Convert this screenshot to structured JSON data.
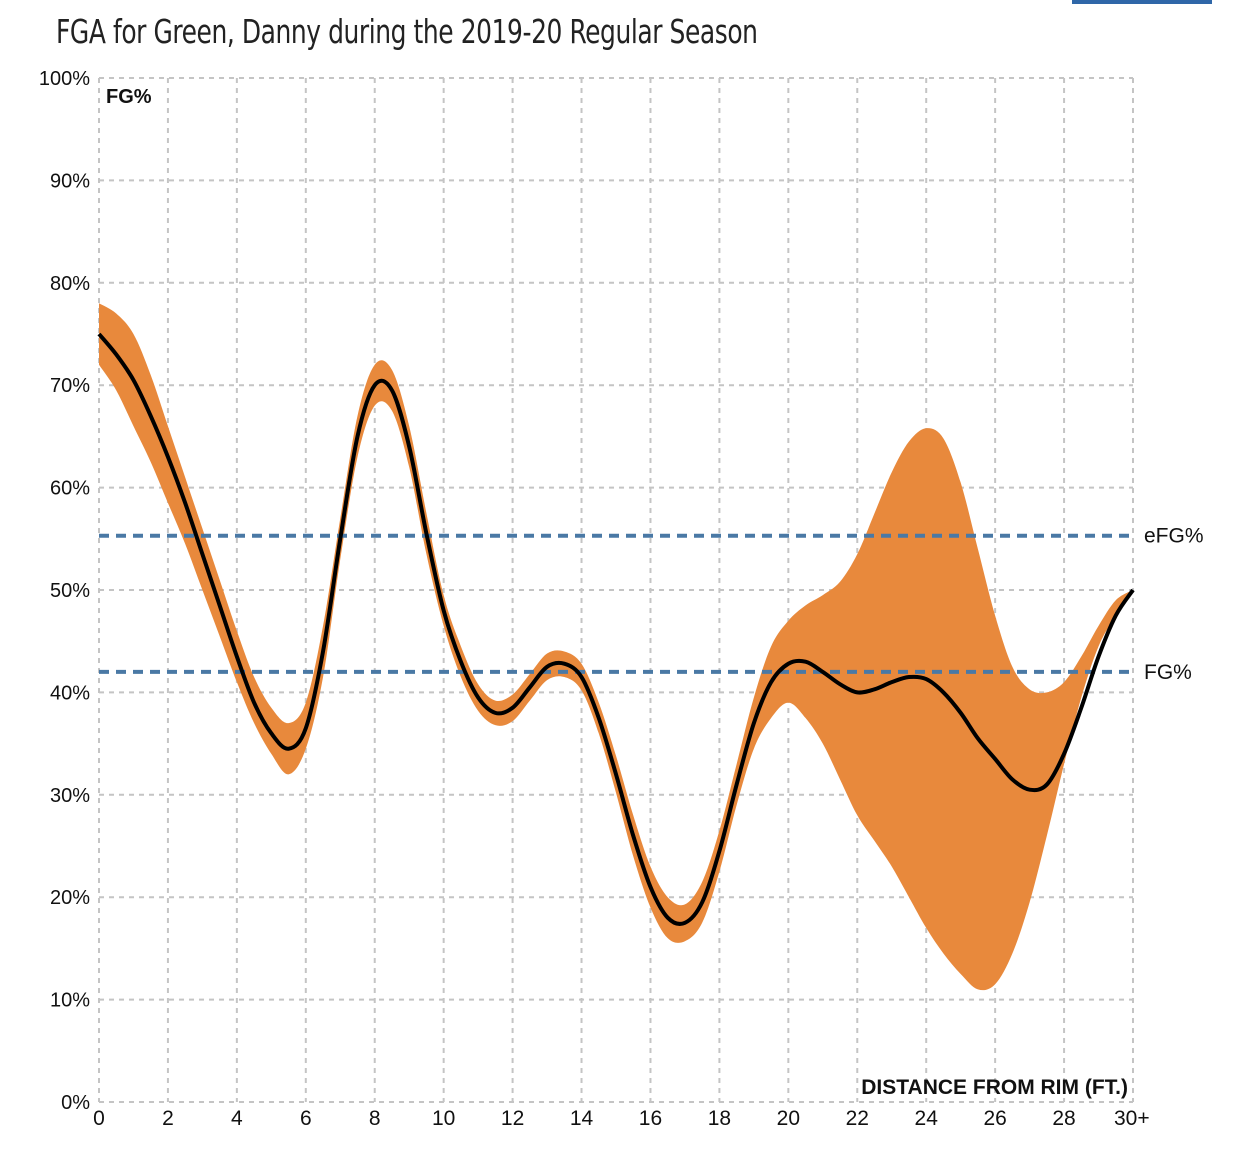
{
  "header": {
    "title": "FGA for Green, Danny during the 2019-20 Regular Season"
  },
  "chart_data": {
    "type": "line",
    "title": "FGA for Green, Danny during the 2019-20 Regular Season",
    "ylabel": "FG%",
    "xlabel": "DISTANCE FROM RIM (FT.)",
    "xlim": [
      0,
      30
    ],
    "ylim": [
      0,
      100
    ],
    "x_ticks": [
      "0",
      "2",
      "4",
      "6",
      "8",
      "10",
      "12",
      "14",
      "16",
      "18",
      "20",
      "22",
      "24",
      "26",
      "28",
      "30+"
    ],
    "y_ticks": [
      "0%",
      "10%",
      "20%",
      "30%",
      "40%",
      "50%",
      "60%",
      "70%",
      "80%",
      "90%",
      "100%"
    ],
    "grid": true,
    "colors": {
      "band": "#e8893c",
      "line": "#000000",
      "reference": "#4a79a5",
      "grid": "#c4c4c4"
    },
    "series": [
      {
        "name": "FG%",
        "x": [
          0,
          0.5,
          1,
          1.5,
          2,
          2.5,
          3,
          3.5,
          4,
          4.5,
          5,
          5.5,
          6,
          6.5,
          7,
          7.5,
          8,
          8.5,
          9,
          9.5,
          10,
          10.5,
          11,
          11.5,
          12,
          12.5,
          13,
          13.5,
          14,
          14.5,
          15,
          15.5,
          16,
          16.5,
          17,
          17.5,
          18,
          18.5,
          19,
          19.5,
          20,
          20.5,
          21,
          21.5,
          22,
          22.5,
          23,
          23.5,
          24,
          24.5,
          25,
          25.5,
          26,
          26.5,
          27,
          27.5,
          28,
          28.5,
          29,
          29.5,
          30
        ],
        "y": [
          75,
          73,
          70.5,
          67,
          63,
          58.5,
          53.5,
          48.5,
          43.5,
          39,
          36,
          34.5,
          36.5,
          44,
          55,
          65,
          70,
          69.5,
          64,
          55.5,
          48,
          43,
          39.5,
          38,
          38.5,
          40.5,
          42.5,
          42.8,
          41.5,
          37.5,
          32,
          26,
          21,
          18,
          17.5,
          19.5,
          24.5,
          31,
          37,
          41,
          42.8,
          43,
          42,
          40.8,
          40,
          40.3,
          41,
          41.5,
          41.3,
          40,
          38,
          35.5,
          33.5,
          31.5,
          30.5,
          31,
          34,
          38.5,
          43.5,
          47.5,
          50
        ]
      }
    ],
    "band": {
      "upper": [
        78,
        77,
        75,
        71,
        66,
        61,
        56,
        51,
        46,
        41.5,
        38.5,
        37,
        39,
        46.5,
        57,
        67,
        72,
        71.5,
        66,
        57.5,
        49.5,
        44.5,
        40.8,
        39.2,
        39.8,
        41.8,
        43.8,
        44,
        42.8,
        39,
        33.8,
        28,
        23,
        20,
        19.3,
        21.5,
        26.5,
        33,
        39.5,
        44.5,
        47,
        48.5,
        49.5,
        50.8,
        53.5,
        57.5,
        61.5,
        64.5,
        65.8,
        64.8,
        60.5,
        54,
        47.5,
        42.5,
        40.3,
        40,
        41,
        43.5,
        46.5,
        49,
        50
      ],
      "lower": [
        72,
        69.5,
        66,
        62.5,
        58.5,
        54.5,
        50,
        45.5,
        41,
        37,
        34,
        32,
        34.5,
        41.5,
        53,
        63,
        68,
        67.5,
        62,
        53.5,
        46.5,
        41.5,
        38.2,
        36.8,
        37.2,
        39.2,
        41.2,
        41.5,
        40.2,
        36,
        30.2,
        24,
        19,
        16,
        15.7,
        17.5,
        22.5,
        29,
        34.5,
        37.5,
        39,
        37.5,
        35,
        31.5,
        28,
        25.5,
        23,
        20,
        17,
        14.5,
        12.5,
        11,
        11.5,
        14.5,
        19.5,
        26,
        33,
        39.5,
        44.5,
        47.5,
        50
      ]
    },
    "reference_lines": [
      {
        "label": "eFG%",
        "y": 55.3
      },
      {
        "label": "FG%",
        "y": 42
      }
    ]
  }
}
